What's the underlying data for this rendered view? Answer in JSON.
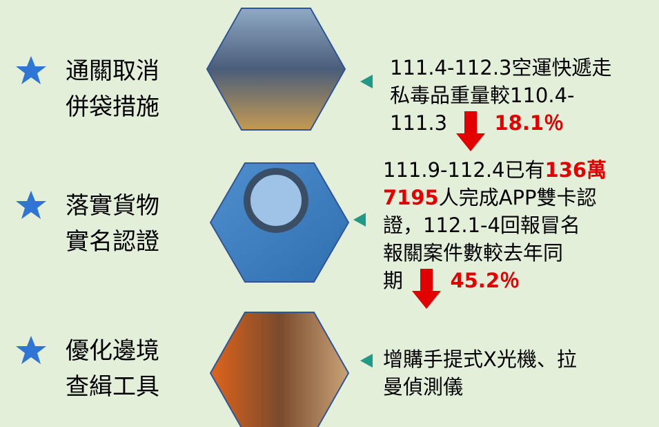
{
  "items": [
    {
      "label": [
        "通關取消",
        "併袋措施"
      ],
      "description": [
        [
          "111.4-112.3空運快遞走"
        ],
        [
          "私毒品重量較110.4-"
        ],
        [
          "111.3",
          "18.1％"
        ]
      ]
    },
    {
      "label": [
        "落實貨物",
        "實名認證"
      ],
      "description": [
        [
          "111.9-112.4已有",
          "136萬"
        ],
        [
          "7195",
          "人完成APP雙卡認"
        ],
        [
          "證，112.1-4回報冒名"
        ],
        [
          "報關案件數較去年同"
        ],
        [
          "期",
          "45.2％"
        ]
      ]
    },
    {
      "label": [
        "優化邊境",
        "查緝工具"
      ],
      "description": [
        [
          "增購手提式X光機、拉"
        ],
        [
          "曼偵測儀"
        ]
      ]
    }
  ]
}
